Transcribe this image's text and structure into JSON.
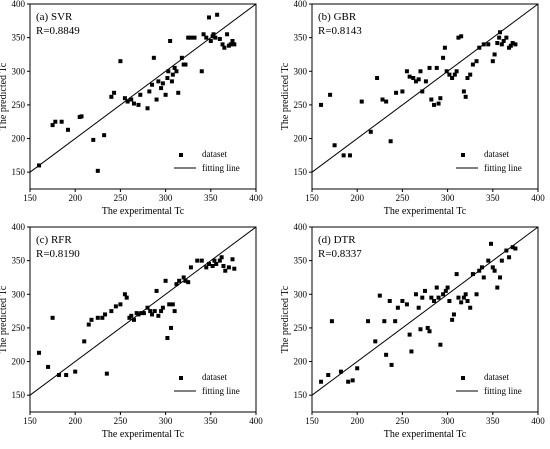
{
  "chart_data": [
    {
      "type": "scatter",
      "title": "(a) SVR",
      "subtitle": "R=0.8849",
      "xlabel": "The experimental Tc",
      "ylabel": "The predicted Tc",
      "xlim": [
        150,
        400
      ],
      "ylim": [
        125,
        400
      ],
      "xticks": [
        150,
        200,
        250,
        300,
        350,
        400
      ],
      "yticks": [
        150,
        200,
        250,
        300,
        350,
        400
      ],
      "legend": [
        "dataset",
        "fitting line"
      ],
      "legend_position": "bottom-right",
      "points": [
        [
          160,
          160
        ],
        [
          175,
          220
        ],
        [
          178,
          225
        ],
        [
          185,
          225
        ],
        [
          192,
          213
        ],
        [
          205,
          232
        ],
        [
          207,
          233
        ],
        [
          220,
          198
        ],
        [
          225,
          152
        ],
        [
          232,
          205
        ],
        [
          240,
          262
        ],
        [
          243,
          268
        ],
        [
          250,
          315
        ],
        [
          255,
          260
        ],
        [
          258,
          255
        ],
        [
          262,
          258
        ],
        [
          265,
          252
        ],
        [
          270,
          250
        ],
        [
          272,
          265
        ],
        [
          280,
          245
        ],
        [
          282,
          270
        ],
        [
          285,
          280
        ],
        [
          287,
          320
        ],
        [
          290,
          258
        ],
        [
          292,
          285
        ],
        [
          295,
          275
        ],
        [
          297,
          282
        ],
        [
          300,
          265
        ],
        [
          302,
          290
        ],
        [
          303,
          300
        ],
        [
          305,
          345
        ],
        [
          307,
          285
        ],
        [
          308,
          295
        ],
        [
          310,
          305
        ],
        [
          312,
          300
        ],
        [
          314,
          268
        ],
        [
          318,
          320
        ],
        [
          320,
          310
        ],
        [
          322,
          310
        ],
        [
          325,
          350
        ],
        [
          328,
          350
        ],
        [
          332,
          350
        ],
        [
          340,
          300
        ],
        [
          342,
          355
        ],
        [
          345,
          350
        ],
        [
          348,
          380
        ],
        [
          350,
          345
        ],
        [
          352,
          352
        ],
        [
          353,
          355
        ],
        [
          355,
          350
        ],
        [
          357,
          384
        ],
        [
          360,
          348
        ],
        [
          363,
          340
        ],
        [
          365,
          335
        ],
        [
          368,
          355
        ],
        [
          370,
          338
        ],
        [
          372,
          340
        ],
        [
          374,
          345
        ],
        [
          376,
          340
        ]
      ]
    },
    {
      "type": "scatter",
      "title": "(b) GBR",
      "subtitle": "R=0.8143",
      "xlabel": "The experimental Tc",
      "ylabel": "The predicted Tc",
      "xlim": [
        150,
        400
      ],
      "ylim": [
        125,
        400
      ],
      "xticks": [
        150,
        200,
        250,
        300,
        350,
        400
      ],
      "yticks": [
        150,
        200,
        250,
        300,
        350,
        400
      ],
      "legend": [
        "dataset",
        "fitting line"
      ],
      "legend_position": "bottom-right",
      "points": [
        [
          160,
          250
        ],
        [
          170,
          265
        ],
        [
          175,
          190
        ],
        [
          185,
          175
        ],
        [
          192,
          175
        ],
        [
          205,
          255
        ],
        [
          215,
          210
        ],
        [
          222,
          290
        ],
        [
          228,
          258
        ],
        [
          232,
          255
        ],
        [
          237,
          196
        ],
        [
          243,
          268
        ],
        [
          250,
          270
        ],
        [
          255,
          300
        ],
        [
          258,
          292
        ],
        [
          262,
          290
        ],
        [
          265,
          285
        ],
        [
          268,
          288
        ],
        [
          270,
          300
        ],
        [
          272,
          270
        ],
        [
          276,
          285
        ],
        [
          280,
          305
        ],
        [
          282,
          258
        ],
        [
          285,
          250
        ],
        [
          288,
          305
        ],
        [
          290,
          252
        ],
        [
          292,
          260
        ],
        [
          295,
          320
        ],
        [
          297,
          335
        ],
        [
          299,
          300
        ],
        [
          302,
          295
        ],
        [
          305,
          290
        ],
        [
          308,
          295
        ],
        [
          310,
          300
        ],
        [
          312,
          350
        ],
        [
          315,
          352
        ],
        [
          318,
          270
        ],
        [
          320,
          262
        ],
        [
          322,
          290
        ],
        [
          325,
          295
        ],
        [
          328,
          310
        ],
        [
          332,
          315
        ],
        [
          335,
          335
        ],
        [
          340,
          340
        ],
        [
          345,
          340
        ],
        [
          350,
          315
        ],
        [
          352,
          325
        ],
        [
          355,
          342
        ],
        [
          357,
          350
        ],
        [
          358,
          358
        ],
        [
          360,
          340
        ],
        [
          362,
          345
        ],
        [
          365,
          350
        ],
        [
          368,
          335
        ],
        [
          370,
          338
        ],
        [
          372,
          342
        ],
        [
          375,
          340
        ]
      ]
    },
    {
      "type": "scatter",
      "title": "(c) RFR",
      "subtitle": "R=0.8190",
      "xlabel": "The experimental Tc",
      "ylabel": "The predicted Tc",
      "xlim": [
        150,
        400
      ],
      "ylim": [
        125,
        400
      ],
      "xticks": [
        150,
        200,
        250,
        300,
        350,
        400
      ],
      "yticks": [
        150,
        200,
        250,
        300,
        350,
        400
      ],
      "legend": [
        "dataset",
        "fitting line"
      ],
      "legend_position": "bottom-right",
      "points": [
        [
          160,
          213
        ],
        [
          170,
          192
        ],
        [
          175,
          265
        ],
        [
          182,
          180
        ],
        [
          190,
          180
        ],
        [
          200,
          185
        ],
        [
          210,
          230
        ],
        [
          215,
          255
        ],
        [
          218,
          262
        ],
        [
          225,
          265
        ],
        [
          230,
          265
        ],
        [
          233,
          270
        ],
        [
          235,
          182
        ],
        [
          240,
          275
        ],
        [
          245,
          282
        ],
        [
          250,
          285
        ],
        [
          255,
          300
        ],
        [
          257,
          295
        ],
        [
          260,
          265
        ],
        [
          262,
          268
        ],
        [
          265,
          262
        ],
        [
          268,
          272
        ],
        [
          270,
          270
        ],
        [
          273,
          272
        ],
        [
          276,
          272
        ],
        [
          280,
          280
        ],
        [
          283,
          275
        ],
        [
          285,
          270
        ],
        [
          288,
          275
        ],
        [
          290,
          305
        ],
        [
          292,
          268
        ],
        [
          295,
          275
        ],
        [
          297,
          280
        ],
        [
          300,
          320
        ],
        [
          302,
          235
        ],
        [
          304,
          285
        ],
        [
          306,
          250
        ],
        [
          308,
          285
        ],
        [
          310,
          275
        ],
        [
          312,
          315
        ],
        [
          315,
          320
        ],
        [
          320,
          325
        ],
        [
          322,
          320
        ],
        [
          325,
          318
        ],
        [
          328,
          340
        ],
        [
          335,
          350
        ],
        [
          340,
          350
        ],
        [
          345,
          340
        ],
        [
          348,
          345
        ],
        [
          352,
          342
        ],
        [
          354,
          350
        ],
        [
          356,
          345
        ],
        [
          360,
          350
        ],
        [
          362,
          355
        ],
        [
          364,
          342
        ],
        [
          366,
          335
        ],
        [
          370,
          340
        ],
        [
          374,
          352
        ],
        [
          376,
          338
        ]
      ]
    },
    {
      "type": "scatter",
      "title": "(d) DTR",
      "subtitle": "R=0.8337",
      "xlabel": "The experimental Tc",
      "ylabel": "The predicted Tc",
      "xlim": [
        150,
        400
      ],
      "ylim": [
        125,
        400
      ],
      "xticks": [
        150,
        200,
        250,
        300,
        350,
        400
      ],
      "yticks": [
        150,
        200,
        250,
        300,
        350,
        400
      ],
      "legend": [
        "dataset",
        "fitting line"
      ],
      "legend_position": "bottom-right",
      "points": [
        [
          160,
          170
        ],
        [
          168,
          180
        ],
        [
          172,
          260
        ],
        [
          182,
          185
        ],
        [
          190,
          170
        ],
        [
          195,
          172
        ],
        [
          200,
          190
        ],
        [
          212,
          260
        ],
        [
          220,
          230
        ],
        [
          225,
          298
        ],
        [
          230,
          260
        ],
        [
          232,
          210
        ],
        [
          236,
          290
        ],
        [
          238,
          195
        ],
        [
          242,
          260
        ],
        [
          245,
          280
        ],
        [
          250,
          290
        ],
        [
          255,
          285
        ],
        [
          258,
          240
        ],
        [
          260,
          215
        ],
        [
          265,
          300
        ],
        [
          268,
          280
        ],
        [
          270,
          248
        ],
        [
          272,
          295
        ],
        [
          275,
          305
        ],
        [
          278,
          250
        ],
        [
          280,
          245
        ],
        [
          282,
          295
        ],
        [
          285,
          290
        ],
        [
          288,
          310
        ],
        [
          290,
          295
        ],
        [
          292,
          225
        ],
        [
          295,
          300
        ],
        [
          298,
          305
        ],
        [
          300,
          310
        ],
        [
          302,
          290
        ],
        [
          305,
          262
        ],
        [
          307,
          270
        ],
        [
          310,
          330
        ],
        [
          312,
          295
        ],
        [
          315,
          288
        ],
        [
          318,
          295
        ],
        [
          320,
          300
        ],
        [
          322,
          290
        ],
        [
          325,
          280
        ],
        [
          328,
          330
        ],
        [
          332,
          300
        ],
        [
          335,
          335
        ],
        [
          338,
          340
        ],
        [
          340,
          325
        ],
        [
          345,
          350
        ],
        [
          348,
          375
        ],
        [
          350,
          340
        ],
        [
          352,
          335
        ],
        [
          355,
          310
        ],
        [
          358,
          325
        ],
        [
          360,
          350
        ],
        [
          365,
          365
        ],
        [
          368,
          355
        ],
        [
          372,
          370
        ],
        [
          375,
          368
        ]
      ]
    }
  ]
}
